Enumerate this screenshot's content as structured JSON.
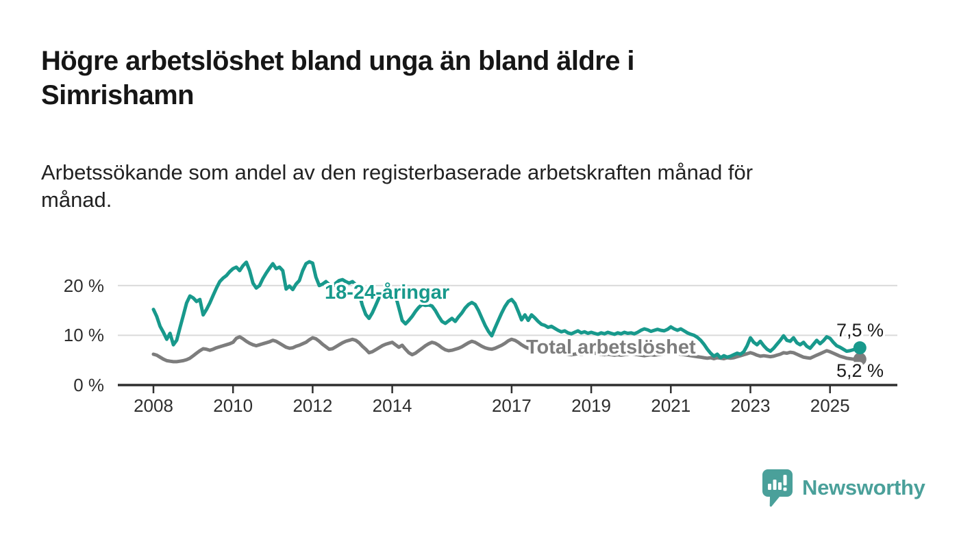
{
  "header": {
    "title_line1": "Högre arbetslöshet bland unga än bland äldre i",
    "title_line2": "Simrishamn",
    "subtitle_line1": "Arbetssökande som andel av den registerbaserade arbetskraften månad för",
    "subtitle_line2": "månad."
  },
  "colors": {
    "accent_teal": "#18998c",
    "line_gray": "#7d7d7d",
    "logo_teal": "#4aa09a",
    "grid": "#d9d9d9",
    "axis": "#2f2f2f"
  },
  "chart_data": {
    "type": "line",
    "title": "Högre arbetslöshet bland unga än bland äldre i Simrishamn",
    "subtitle": "Arbetssökande som andel av den registerbaserade arbetskraften månad för månad.",
    "x_interval": "monthly",
    "x_start": "2008-01",
    "x_end": "2025-10",
    "ylim": [
      0,
      26
    ],
    "grid": "horizontal",
    "legend_position": "inline-labels",
    "y_ticks": [
      {
        "label": "0 %",
        "value": 0
      },
      {
        "label": "10 %",
        "value": 10
      },
      {
        "label": "20 %",
        "value": 20
      }
    ],
    "x_ticks": [
      {
        "label": "2008",
        "year": 2008
      },
      {
        "label": "2010",
        "year": 2010
      },
      {
        "label": "2012",
        "year": 2012
      },
      {
        "label": "2014",
        "year": 2014
      },
      {
        "label": "2017",
        "year": 2017
      },
      {
        "label": "2019",
        "year": 2019
      },
      {
        "label": "2021",
        "year": 2021
      },
      {
        "label": "2023",
        "year": 2023
      },
      {
        "label": "2025",
        "year": 2025
      }
    ],
    "series": [
      {
        "name": "18-24-åringar",
        "color": "#18998c",
        "end_label": "7,5 %",
        "end_value": 7.5,
        "values": [
          15.2,
          13.8,
          11.8,
          10.6,
          9.2,
          10.4,
          8.1,
          9.0,
          11.5,
          14.0,
          16.5,
          17.9,
          17.5,
          16.8,
          17.2,
          14.1,
          15.2,
          16.5,
          18.0,
          19.5,
          20.8,
          21.5,
          22.0,
          22.8,
          23.4,
          23.7,
          23.0,
          24.0,
          24.7,
          23.0,
          20.5,
          19.5,
          20.0,
          21.4,
          22.5,
          23.5,
          24.4,
          23.4,
          23.7,
          23.0,
          19.3,
          19.9,
          19.2,
          20.3,
          21.0,
          23.0,
          24.4,
          24.8,
          24.5,
          21.7,
          20.0,
          20.3,
          20.8,
          20.2,
          19.8,
          20.5,
          21.0,
          21.2,
          20.8,
          20.5,
          20.8,
          20.2,
          18.5,
          16.0,
          14.2,
          13.4,
          14.5,
          16.0,
          17.5,
          18.5,
          19.2,
          19.6,
          19.4,
          18.0,
          15.5,
          13.0,
          12.3,
          13.0,
          13.8,
          14.8,
          15.6,
          16.2,
          16.0,
          16.1,
          15.9,
          15.0,
          13.8,
          12.8,
          12.4,
          12.9,
          13.4,
          12.8,
          13.7,
          14.5,
          15.5,
          16.2,
          16.6,
          16.2,
          15.0,
          13.5,
          12.0,
          10.8,
          9.9,
          11.5,
          13.0,
          14.5,
          15.8,
          16.8,
          17.2,
          16.4,
          14.8,
          13.1,
          14.1,
          13.0,
          14.1,
          13.5,
          12.8,
          12.2,
          12.0,
          11.6,
          11.8,
          11.4,
          11.0,
          10.7,
          10.9,
          10.5,
          10.3,
          10.6,
          10.9,
          10.5,
          10.7,
          10.4,
          10.6,
          10.4,
          10.2,
          10.5,
          10.3,
          10.6,
          10.4,
          10.2,
          10.5,
          10.3,
          10.6,
          10.4,
          10.5,
          10.3,
          10.6,
          11.0,
          11.3,
          11.1,
          10.8,
          11.0,
          11.2,
          11.0,
          10.9,
          11.2,
          11.7,
          11.3,
          11.0,
          11.3,
          10.9,
          10.5,
          10.2,
          10.0,
          9.6,
          9.0,
          8.2,
          7.2,
          6.4,
          5.8,
          6.2,
          5.5,
          5.9,
          5.6,
          5.8,
          6.1,
          6.4,
          6.2,
          6.7,
          7.9,
          9.5,
          8.6,
          8.1,
          8.8,
          7.9,
          7.2,
          6.8,
          7.4,
          8.2,
          9.0,
          9.9,
          9.0,
          8.8,
          9.5,
          8.5,
          8.1,
          8.6,
          7.8,
          7.4,
          8.2,
          9.0,
          8.3,
          8.9,
          9.7,
          9.4,
          8.6,
          7.9,
          7.6,
          7.2,
          6.8,
          6.9,
          7.1,
          7.3,
          7.5
        ]
      },
      {
        "name": "Total arbetslöshet",
        "color": "#7d7d7d",
        "end_label": "5,2 %",
        "end_value": 5.2,
        "values": [
          6.2,
          6.0,
          5.6,
          5.2,
          4.9,
          4.8,
          4.7,
          4.7,
          4.8,
          4.9,
          5.1,
          5.4,
          5.9,
          6.4,
          6.9,
          7.3,
          7.2,
          7.0,
          7.2,
          7.5,
          7.7,
          7.9,
          8.1,
          8.3,
          8.6,
          9.4,
          9.7,
          9.3,
          8.8,
          8.4,
          8.1,
          7.9,
          8.1,
          8.3,
          8.5,
          8.7,
          9.0,
          8.8,
          8.4,
          8.0,
          7.6,
          7.4,
          7.5,
          7.8,
          8.0,
          8.3,
          8.6,
          9.1,
          9.5,
          9.3,
          8.8,
          8.2,
          7.7,
          7.2,
          7.3,
          7.7,
          8.1,
          8.5,
          8.8,
          9.0,
          9.2,
          9.0,
          8.5,
          7.8,
          7.2,
          6.5,
          6.7,
          7.1,
          7.5,
          7.9,
          8.2,
          8.4,
          8.6,
          8.1,
          7.6,
          8.0,
          7.2,
          6.5,
          6.1,
          6.4,
          6.9,
          7.4,
          7.9,
          8.3,
          8.6,
          8.4,
          8.0,
          7.5,
          7.1,
          6.9,
          7.0,
          7.2,
          7.4,
          7.7,
          8.1,
          8.5,
          8.8,
          8.6,
          8.2,
          7.8,
          7.5,
          7.3,
          7.2,
          7.4,
          7.7,
          8.0,
          8.4,
          8.9,
          9.2,
          9.0,
          8.6,
          8.1,
          7.7,
          7.4,
          7.5,
          7.3,
          7.1,
          7.0,
          6.9,
          6.8,
          6.9,
          6.8,
          6.6,
          6.4,
          6.3,
          6.2,
          6.1,
          6.2,
          6.3,
          6.2,
          6.3,
          6.4,
          6.5,
          6.4,
          6.3,
          6.2,
          6.1,
          6.2,
          6.1,
          6.0,
          6.1,
          6.0,
          6.1,
          6.2,
          6.3,
          6.2,
          6.1,
          6.0,
          5.9,
          6.0,
          6.1,
          6.0,
          6.1,
          6.2,
          6.3,
          6.4,
          6.5,
          6.4,
          6.3,
          6.2,
          6.1,
          6.0,
          5.9,
          5.8,
          5.7,
          5.6,
          5.5,
          5.4,
          5.5,
          5.3,
          5.5,
          5.4,
          5.3,
          5.5,
          5.4,
          5.5,
          5.7,
          5.9,
          6.1,
          6.3,
          6.5,
          6.3,
          6.0,
          5.8,
          5.9,
          5.8,
          5.7,
          5.8,
          6.0,
          6.2,
          6.5,
          6.4,
          6.6,
          6.5,
          6.2,
          5.9,
          5.6,
          5.5,
          5.4,
          5.7,
          6.0,
          6.3,
          6.6,
          6.9,
          6.7,
          6.4,
          6.1,
          5.8,
          5.6,
          5.4,
          5.3,
          5.2,
          5.3,
          5.2
        ]
      }
    ]
  },
  "footer": {
    "brand": "Newsworthy"
  }
}
